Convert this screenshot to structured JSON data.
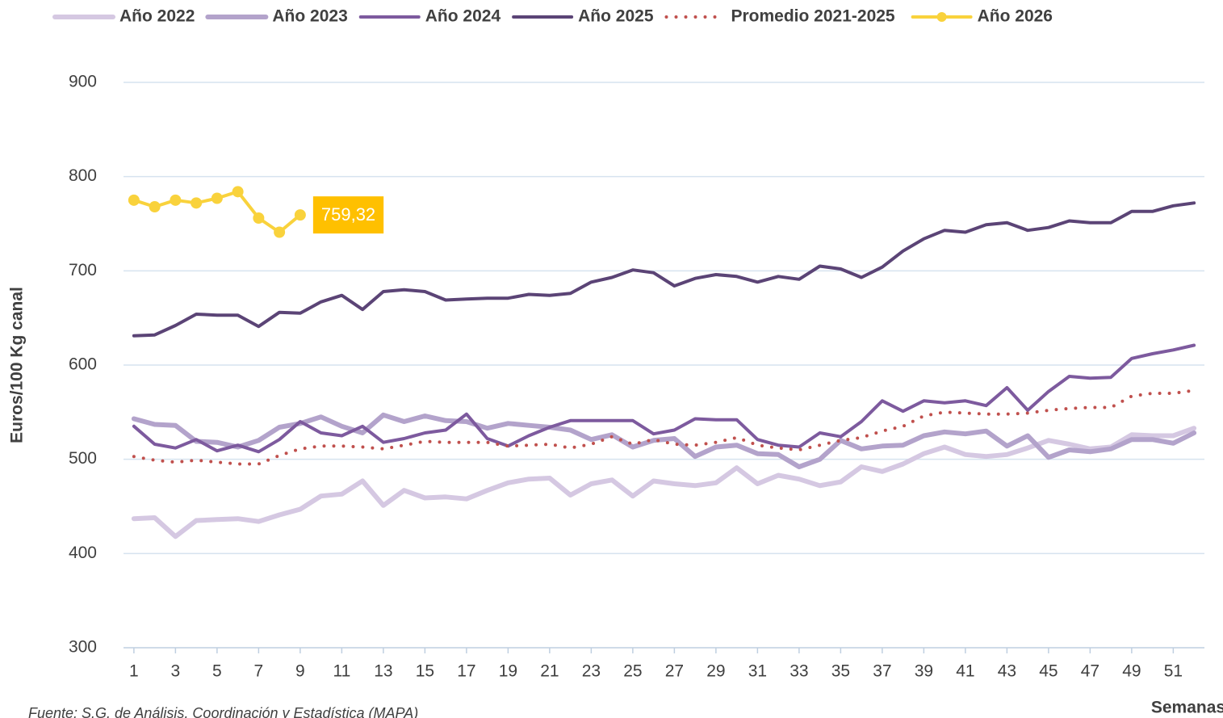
{
  "chart_data": {
    "type": "line",
    "y_label": "Euros/100 Kg canal",
    "x_label": "Semanas",
    "source": "Fuente: S.G. de Análisis, Coordinación y Estadística (MAPA)",
    "x": [
      1,
      2,
      3,
      4,
      5,
      6,
      7,
      8,
      9,
      10,
      11,
      12,
      13,
      14,
      15,
      16,
      17,
      18,
      19,
      20,
      21,
      22,
      23,
      24,
      25,
      26,
      27,
      28,
      29,
      30,
      31,
      32,
      33,
      34,
      35,
      36,
      37,
      38,
      39,
      40,
      41,
      42,
      43,
      44,
      45,
      46,
      47,
      48,
      49,
      50,
      51,
      52
    ],
    "xlim": [
      0.5,
      52.5
    ],
    "xticks": [
      1,
      3,
      5,
      7,
      9,
      11,
      13,
      15,
      17,
      19,
      21,
      23,
      25,
      27,
      29,
      31,
      33,
      35,
      37,
      39,
      41,
      43,
      45,
      47,
      49,
      51
    ],
    "ylim": [
      300,
      900
    ],
    "yticks": [
      300,
      400,
      500,
      600,
      700,
      800,
      900
    ],
    "grid": true,
    "legend": "top",
    "series": [
      {
        "name": "Año 2022",
        "color": "#d5c8e2",
        "values": [
          437,
          438,
          418,
          435,
          436,
          437,
          434,
          441,
          447,
          461,
          463,
          477,
          451,
          467,
          459,
          460,
          458,
          467,
          475,
          479,
          480,
          462,
          474,
          478,
          461,
          477,
          474,
          472,
          475,
          491,
          474,
          483,
          479,
          472,
          476,
          492,
          487,
          495,
          506,
          513,
          505,
          503,
          505,
          512,
          520,
          516,
          511,
          513,
          526,
          525,
          525,
          533
        ]
      },
      {
        "name": "Año 2023",
        "color": "#b3a3cb",
        "values": [
          543,
          537,
          536,
          519,
          518,
          513,
          520,
          534,
          538,
          545,
          535,
          528,
          547,
          540,
          546,
          541,
          540,
          533,
          538,
          536,
          534,
          531,
          521,
          526,
          513,
          520,
          522,
          503,
          513,
          515,
          506,
          505,
          492,
          500,
          520,
          511,
          514,
          515,
          525,
          529,
          527,
          530,
          514,
          525,
          502,
          510,
          508,
          511,
          521,
          521,
          517,
          528
        ]
      },
      {
        "name": "Año 2024",
        "color": "#7d5a9e",
        "values": [
          535,
          516,
          512,
          521,
          509,
          515,
          508,
          521,
          540,
          528,
          525,
          535,
          518,
          522,
          528,
          531,
          548,
          522,
          514,
          525,
          534,
          541,
          541,
          541,
          541,
          527,
          531,
          543,
          542,
          542,
          521,
          515,
          513,
          528,
          524,
          540,
          562,
          551,
          562,
          560,
          562,
          557,
          576,
          552,
          572,
          588,
          586,
          587,
          607,
          612,
          616,
          621
        ]
      },
      {
        "name": "Año 2025",
        "color": "#5b4476",
        "values": [
          631,
          632,
          642,
          654,
          653,
          653,
          641,
          656,
          655,
          667,
          674,
          659,
          678,
          680,
          678,
          669,
          670,
          671,
          671,
          675,
          674,
          676,
          688,
          693,
          701,
          698,
          684,
          692,
          696,
          694,
          688,
          694,
          691,
          705,
          702,
          693,
          704,
          721,
          734,
          743,
          741,
          749,
          751,
          743,
          746,
          753,
          751,
          751,
          763,
          763,
          769,
          772
        ]
      },
      {
        "name": "Promedio 2021-2025",
        "color": "#c0504d",
        "style": "dotted",
        "values": [
          503,
          499,
          497,
          499,
          497,
          495,
          495,
          504,
          511,
          514,
          514,
          513,
          511,
          515,
          519,
          518,
          518,
          518,
          514,
          515,
          516,
          512,
          516,
          524,
          516,
          521,
          516,
          515,
          518,
          523,
          515,
          512,
          510,
          515,
          520,
          523,
          530,
          535,
          546,
          550,
          549,
          548,
          548,
          549,
          552,
          554,
          555,
          555,
          567,
          570,
          570,
          573
        ]
      },
      {
        "name": "Año 2026",
        "color": "#f9d23c",
        "marker": "circle",
        "label_color": "#ffc000",
        "values": [
          775,
          768,
          775,
          772,
          777,
          784,
          756,
          741,
          759.32,
          null,
          null,
          null,
          null,
          null,
          null,
          null,
          null,
          null,
          null,
          null,
          null,
          null,
          null,
          null,
          null,
          null,
          null,
          null,
          null,
          null,
          null,
          null,
          null,
          null,
          null,
          null,
          null,
          null,
          null,
          null,
          null,
          null,
          null,
          null,
          null,
          null,
          null,
          null,
          null,
          null,
          null,
          null
        ],
        "value_labels": [
          null,
          null,
          null,
          null,
          null,
          null,
          null,
          null,
          "759,32",
          null,
          null,
          null,
          null,
          null,
          null,
          null,
          null,
          null,
          null,
          null,
          null,
          null,
          null,
          null,
          null,
          null,
          null,
          null,
          null,
          null,
          null,
          null,
          null,
          null,
          null,
          null,
          null,
          null,
          null,
          null,
          null,
          null,
          null,
          null,
          null,
          null,
          null,
          null,
          null,
          null,
          null,
          null
        ]
      }
    ]
  }
}
